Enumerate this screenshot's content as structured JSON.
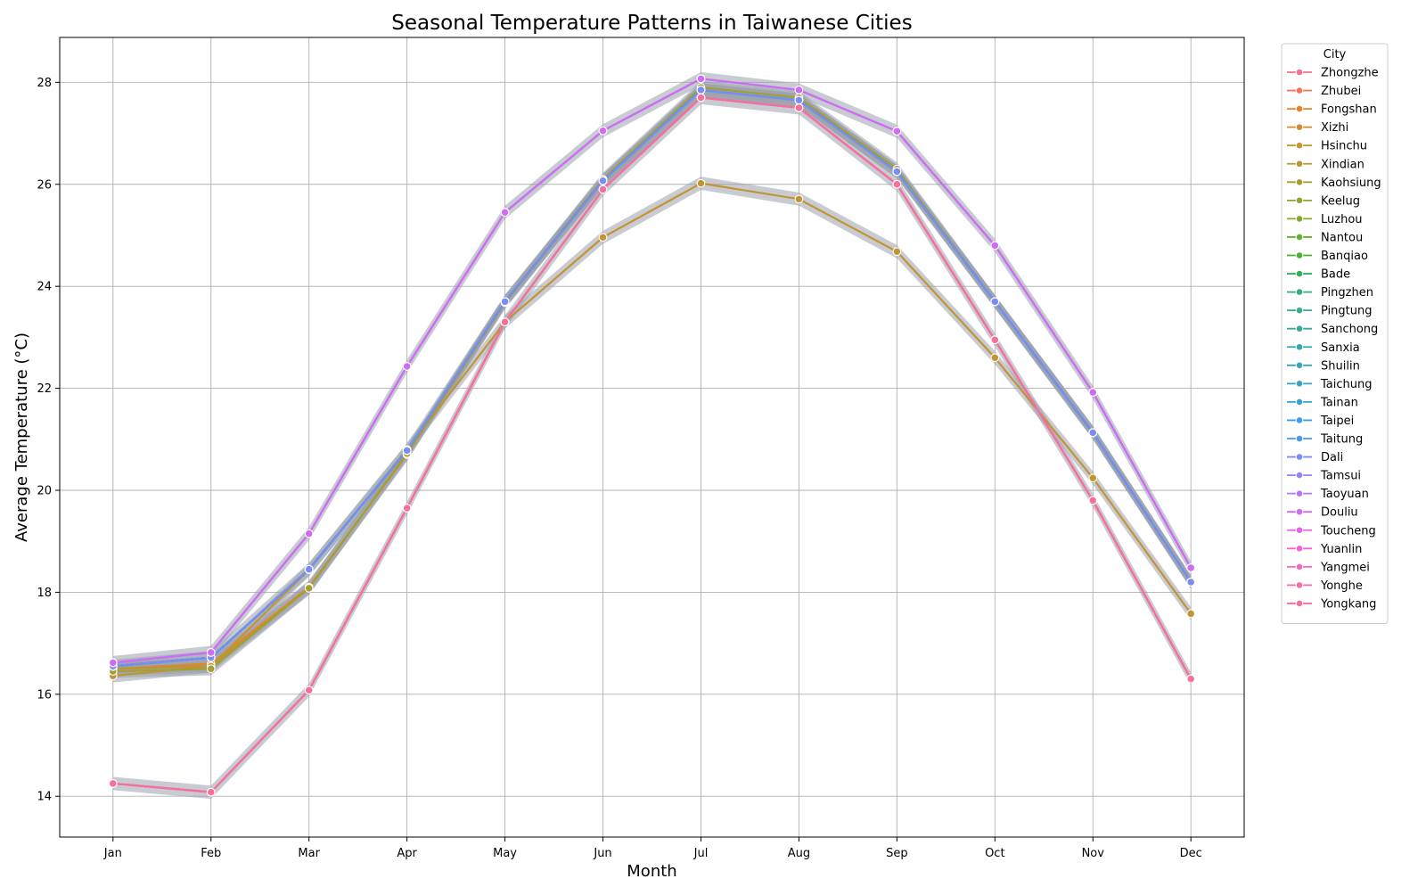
{
  "chart_data": {
    "type": "line",
    "title": "Seasonal Temperature Patterns in Taiwanese Cities",
    "xlabel": "Month",
    "ylabel": "Average Temperature (°C)",
    "categories": [
      "Jan",
      "Feb",
      "Mar",
      "Apr",
      "May",
      "Jun",
      "Jul",
      "Aug",
      "Sep",
      "Oct",
      "Nov",
      "Dec"
    ],
    "ylim": [
      13.2,
      28.88
    ],
    "yticks": [
      "14",
      "16",
      "18",
      "20",
      "22",
      "24",
      "26",
      "28"
    ],
    "grid": true,
    "legend_title": "City",
    "legend_position": "outside-top-right",
    "confidence_band_color": "#9aa3ad",
    "series": [
      {
        "name": "Zhongzhe",
        "color": "#f77189",
        "values": [
          16.55,
          16.72,
          18.45,
          20.78,
          23.7,
          26.07,
          27.85,
          27.65,
          26.25,
          23.7,
          21.13,
          18.2
        ]
      },
      {
        "name": "Zhubei",
        "color": "#f6745c",
        "values": [
          16.55,
          16.72,
          18.45,
          20.78,
          23.7,
          26.07,
          27.85,
          27.65,
          26.25,
          23.7,
          21.13,
          18.2
        ]
      },
      {
        "name": "Fongshan",
        "color": "#e7832f",
        "values": [
          16.5,
          16.6,
          18.1,
          20.7,
          23.7,
          26.07,
          27.85,
          27.65,
          26.25,
          23.7,
          21.13,
          18.2
        ]
      },
      {
        "name": "Xizhi",
        "color": "#d58b31",
        "values": [
          16.55,
          16.72,
          18.45,
          20.78,
          23.7,
          26.07,
          27.85,
          27.65,
          26.25,
          23.7,
          21.13,
          18.2
        ]
      },
      {
        "name": "Hsinchu",
        "color": "#c39532",
        "values": [
          16.36,
          16.55,
          18.44,
          20.8,
          23.3,
          24.96,
          26.02,
          25.71,
          24.68,
          22.6,
          20.24,
          17.58
        ]
      },
      {
        "name": "Xindian",
        "color": "#b49a32",
        "values": [
          16.5,
          16.55,
          18.08,
          20.72,
          23.68,
          26.07,
          27.85,
          27.65,
          26.25,
          23.7,
          21.13,
          18.2
        ]
      },
      {
        "name": "Kaohsiung",
        "color": "#a69e31",
        "values": [
          16.45,
          16.5,
          18.08,
          20.72,
          23.7,
          26.1,
          27.9,
          27.7,
          26.3,
          23.7,
          21.13,
          18.2
        ]
      },
      {
        "name": "Keelug",
        "color": "#96a331",
        "values": [
          16.55,
          16.72,
          18.45,
          20.78,
          23.7,
          26.07,
          27.85,
          27.65,
          26.25,
          23.7,
          21.13,
          18.2
        ]
      },
      {
        "name": "Luzhou",
        "color": "#85a831",
        "values": [
          16.55,
          16.72,
          18.45,
          20.78,
          23.7,
          26.07,
          27.85,
          27.65,
          26.25,
          23.7,
          21.13,
          18.2
        ]
      },
      {
        "name": "Nantou",
        "color": "#6aae31",
        "values": [
          16.55,
          16.72,
          18.45,
          20.78,
          23.7,
          26.07,
          27.85,
          27.65,
          26.25,
          23.7,
          21.13,
          18.2
        ]
      },
      {
        "name": "Banqiao",
        "color": "#4ab031",
        "values": [
          16.55,
          16.72,
          18.45,
          20.78,
          23.7,
          26.07,
          27.85,
          27.65,
          26.25,
          23.7,
          21.13,
          18.2
        ]
      },
      {
        "name": "Bade",
        "color": "#33b05a",
        "values": [
          16.55,
          16.72,
          18.45,
          20.78,
          23.7,
          26.07,
          27.85,
          27.65,
          26.25,
          23.7,
          21.13,
          18.2
        ]
      },
      {
        "name": "Pingzhen",
        "color": "#34ad7c",
        "values": [
          16.55,
          16.72,
          18.45,
          20.78,
          23.7,
          26.07,
          27.85,
          27.65,
          26.25,
          23.7,
          21.13,
          18.2
        ]
      },
      {
        "name": "Pingtung",
        "color": "#35ab8f",
        "values": [
          16.55,
          16.72,
          18.45,
          20.78,
          23.7,
          26.07,
          27.85,
          27.65,
          26.25,
          23.7,
          21.13,
          18.2
        ]
      },
      {
        "name": "Sanchong",
        "color": "#36a99d",
        "values": [
          16.55,
          16.72,
          18.45,
          20.78,
          23.7,
          26.07,
          27.85,
          27.65,
          26.25,
          23.7,
          21.13,
          18.2
        ]
      },
      {
        "name": "Sanxia",
        "color": "#36a7a9",
        "values": [
          16.55,
          16.72,
          18.45,
          20.78,
          23.7,
          26.07,
          27.85,
          27.65,
          26.25,
          23.7,
          21.13,
          18.2
        ]
      },
      {
        "name": "Shuilin",
        "color": "#37a6b5",
        "values": [
          16.55,
          16.72,
          18.45,
          20.78,
          23.7,
          26.07,
          27.85,
          27.65,
          26.25,
          23.7,
          21.13,
          18.2
        ]
      },
      {
        "name": "Taichung",
        "color": "#38a4c3",
        "values": [
          16.55,
          16.72,
          18.45,
          20.78,
          23.7,
          26.07,
          27.85,
          27.65,
          26.25,
          23.7,
          21.13,
          18.2
        ]
      },
      {
        "name": "Tainan",
        "color": "#3aa1d3",
        "values": [
          16.55,
          16.72,
          18.45,
          20.78,
          23.7,
          26.07,
          27.85,
          27.65,
          26.25,
          23.7,
          21.13,
          18.2
        ]
      },
      {
        "name": "Taipei",
        "color": "#3d9de7",
        "values": [
          16.55,
          16.72,
          18.45,
          20.78,
          23.7,
          26.07,
          27.85,
          27.65,
          26.25,
          23.7,
          21.13,
          18.2
        ]
      },
      {
        "name": "Taitung",
        "color": "#4b97f3",
        "values": [
          16.55,
          16.72,
          18.45,
          20.78,
          23.7,
          26.07,
          27.85,
          27.65,
          26.25,
          23.7,
          21.13,
          18.2
        ]
      },
      {
        "name": "Dali",
        "color": "#7b8cf4",
        "values": [
          16.55,
          16.72,
          18.45,
          20.78,
          23.7,
          26.07,
          27.85,
          27.65,
          26.25,
          23.7,
          21.13,
          18.2
        ]
      },
      {
        "name": "Tamsui",
        "color": "#9b82f4",
        "values": [
          16.62,
          16.82,
          19.15,
          22.43,
          25.45,
          27.05,
          28.07,
          27.85,
          27.04,
          24.8,
          21.92,
          18.48
        ]
      },
      {
        "name": "Taoyuan",
        "color": "#b577f4",
        "values": [
          16.62,
          16.82,
          19.15,
          22.43,
          25.45,
          27.05,
          28.07,
          27.85,
          27.04,
          24.8,
          21.92,
          18.48
        ]
      },
      {
        "name": "Douliu",
        "color": "#cf6cf4",
        "values": [
          16.62,
          16.82,
          19.15,
          22.43,
          25.45,
          27.05,
          28.07,
          27.85,
          27.04,
          24.8,
          21.92,
          18.48
        ]
      },
      {
        "name": "Toucheng",
        "color": "#e564ea",
        "values": [
          14.25,
          14.08,
          16.08,
          19.65,
          23.3,
          25.9,
          27.7,
          27.5,
          26.0,
          22.95,
          19.8,
          16.3
        ]
      },
      {
        "name": "Yuanlin",
        "color": "#f363d6",
        "values": [
          14.25,
          14.08,
          16.08,
          19.65,
          23.3,
          25.9,
          27.7,
          27.5,
          26.0,
          22.95,
          19.8,
          16.3
        ]
      },
      {
        "name": "Yangmei",
        "color": "#f568c2",
        "values": [
          14.25,
          14.08,
          16.08,
          19.65,
          23.3,
          25.9,
          27.7,
          27.5,
          26.0,
          22.95,
          19.8,
          16.3
        ]
      },
      {
        "name": "Yonghe",
        "color": "#f66cac",
        "values": [
          14.25,
          14.08,
          16.08,
          19.65,
          23.3,
          25.9,
          27.7,
          27.5,
          26.0,
          22.95,
          19.8,
          16.3
        ]
      },
      {
        "name": "Yongkang",
        "color": "#f6709a",
        "values": [
          14.25,
          14.08,
          16.08,
          19.65,
          23.3,
          25.9,
          27.7,
          27.5,
          26.0,
          22.95,
          19.8,
          16.3
        ]
      }
    ]
  }
}
